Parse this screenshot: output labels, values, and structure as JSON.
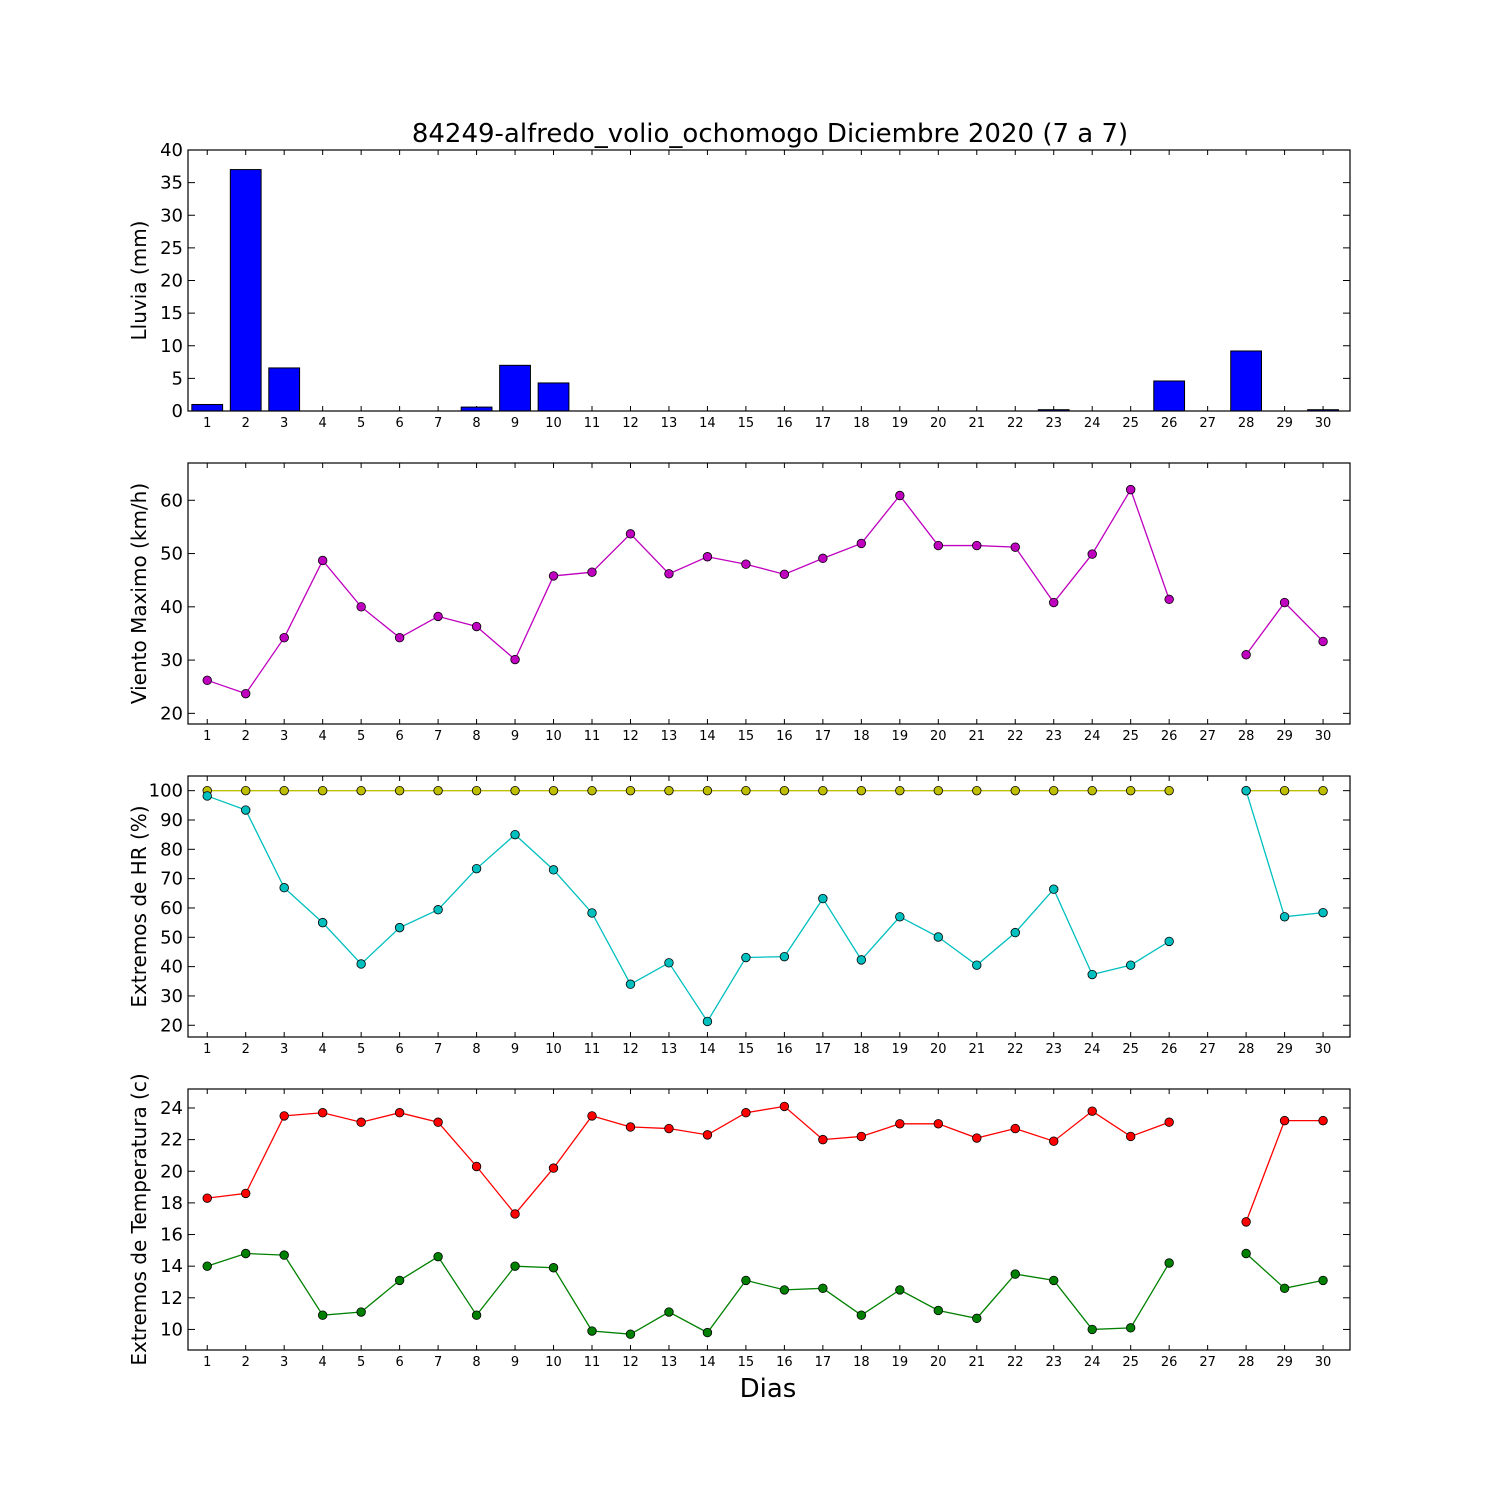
{
  "chart_data": {
    "title": "84249-alfredo_volio_ochomogo Diciembre 2020  (7 a 7)",
    "xlabel": "Dias",
    "days": [
      1,
      2,
      3,
      4,
      5,
      6,
      7,
      8,
      9,
      10,
      11,
      12,
      13,
      14,
      15,
      16,
      17,
      18,
      19,
      20,
      21,
      22,
      23,
      24,
      25,
      26,
      27,
      28,
      29,
      30
    ],
    "panels": [
      {
        "type": "bar",
        "ylabel": "Lluvia (mm)",
        "ylim": [
          0,
          40
        ],
        "yticks": [
          0,
          5,
          10,
          15,
          20,
          25,
          30,
          35,
          40
        ],
        "series": [
          {
            "color": "#0000ff",
            "values": [
              1.0,
              37.0,
              6.6,
              0,
              0,
              0,
              0,
              0.6,
              7.0,
              4.3,
              0,
              0,
              0,
              0,
              0,
              0,
              0,
              0,
              0,
              0,
              0,
              0,
              0.2,
              0,
              0,
              4.6,
              0,
              9.2,
              0,
              0.2
            ]
          }
        ]
      },
      {
        "type": "line",
        "ylabel": "Viento Maximo (km/h)",
        "ylim": [
          18,
          67
        ],
        "yticks": [
          20,
          30,
          40,
          50,
          60
        ],
        "series": [
          {
            "color": "#bf00bf",
            "values": [
              26.2,
              23.7,
              34.2,
              48.7,
              40.0,
              34.2,
              38.2,
              36.3,
              30.1,
              45.8,
              46.5,
              53.7,
              46.2,
              49.4,
              48.0,
              46.1,
              49.1,
              51.9,
              60.9,
              51.5,
              51.5,
              51.2,
              40.8,
              49.9,
              62.0,
              41.4,
              null,
              31.0,
              40.8,
              33.5
            ]
          }
        ]
      },
      {
        "type": "line",
        "ylabel": "Extremos de HR (%)",
        "ylim": [
          16,
          105
        ],
        "yticks": [
          20,
          30,
          40,
          50,
          60,
          70,
          80,
          90,
          100
        ],
        "series": [
          {
            "color": "#bfbf00",
            "values": [
              100,
              100,
              100,
              100,
              100,
              100,
              100,
              100,
              100,
              100,
              100,
              100,
              100,
              100,
              100,
              100,
              100,
              100,
              100,
              100,
              100,
              100,
              100,
              100,
              100,
              100,
              null,
              100,
              100,
              100
            ]
          },
          {
            "color": "#00bfbf",
            "values": [
              98.2,
              93.4,
              66.9,
              55.0,
              40.9,
              53.3,
              59.4,
              73.4,
              85.0,
              73.0,
              58.3,
              34.0,
              41.3,
              21.3,
              43.1,
              43.4,
              63.2,
              42.3,
              57.0,
              50.1,
              40.5,
              51.6,
              66.4,
              37.3,
              40.5,
              48.6,
              null,
              100,
              57.0,
              58.4
            ]
          }
        ]
      },
      {
        "type": "line",
        "ylabel": "Extremos de Temperatura (c)",
        "ylim": [
          8.7,
          25.2
        ],
        "yticks": [
          10,
          12,
          14,
          16,
          18,
          20,
          22,
          24
        ],
        "series": [
          {
            "color": "#ff0000",
            "values": [
              18.3,
              18.6,
              23.5,
              23.7,
              23.1,
              23.7,
              23.1,
              20.3,
              17.3,
              20.2,
              23.5,
              22.8,
              22.7,
              22.3,
              23.7,
              24.1,
              22.0,
              22.2,
              23.0,
              23.0,
              22.1,
              22.7,
              21.9,
              23.8,
              22.2,
              23.1,
              null,
              16.8,
              23.2,
              23.2
            ]
          },
          {
            "color": "#008000",
            "values": [
              14.0,
              14.8,
              14.7,
              10.9,
              11.1,
              13.1,
              14.6,
              10.9,
              14.0,
              13.9,
              9.9,
              9.7,
              11.1,
              9.8,
              13.1,
              12.5,
              12.6,
              10.9,
              12.5,
              11.2,
              10.7,
              13.5,
              13.1,
              10.0,
              10.1,
              14.2,
              null,
              14.8,
              12.6,
              13.1
            ]
          }
        ]
      }
    ]
  }
}
